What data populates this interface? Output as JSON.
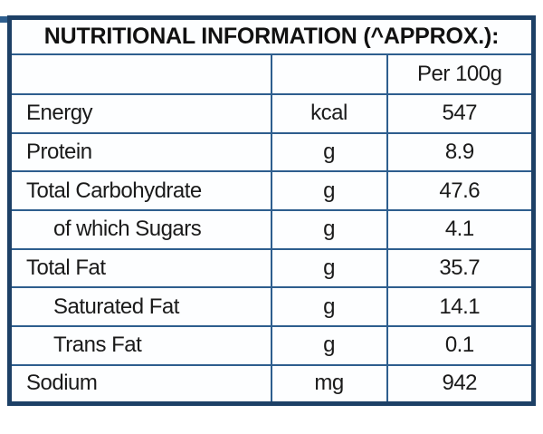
{
  "colors": {
    "page_bg": "#ffffff",
    "border_outer": "#1d4066",
    "border_inner": "#2e5e8e",
    "text_color": "#1a1a1a"
  },
  "table": {
    "title": "NUTRITIONAL INFORMATION (^APPROX.):",
    "column_header": "Per 100g",
    "rows": [
      {
        "label": "Energy",
        "unit": "kcal",
        "per_100g": "547",
        "indent": false
      },
      {
        "label": "Protein",
        "unit": "g",
        "per_100g": "8.9",
        "indent": false
      },
      {
        "label": "Total Carbohydrate",
        "unit": "g",
        "per_100g": "47.6",
        "indent": false
      },
      {
        "label": "of which Sugars",
        "unit": "g",
        "per_100g": "4.1",
        "indent": true
      },
      {
        "label": "Total Fat",
        "unit": "g",
        "per_100g": "35.7",
        "indent": false
      },
      {
        "label": "Saturated Fat",
        "unit": "g",
        "per_100g": "14.1",
        "indent": true
      },
      {
        "label": "Trans Fat",
        "unit": "g",
        "per_100g": "0.1",
        "indent": true
      },
      {
        "label": "Sodium",
        "unit": "mg",
        "per_100g": "942",
        "indent": false
      }
    ]
  }
}
